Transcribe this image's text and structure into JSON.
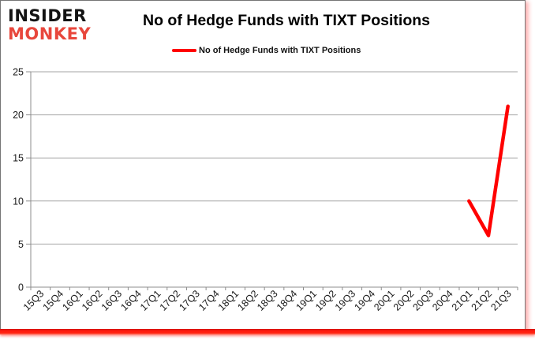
{
  "logo": {
    "line1": "INSIDER",
    "line2": "MONKEY",
    "black": "#141414",
    "red": "#E8473C"
  },
  "header": {
    "title": "No of Hedge Funds with TIXT Positions"
  },
  "legend": {
    "label": "No of Hedge Funds with TIXT Positions",
    "line_color": "#FF0000"
  },
  "chart_data": {
    "type": "line",
    "title": "No of Hedge Funds with TIXT Positions",
    "categories": [
      "15Q3",
      "15Q4",
      "16Q1",
      "16Q2",
      "16Q3",
      "16Q4",
      "17Q1",
      "17Q2",
      "17Q3",
      "17Q4",
      "18Q1",
      "18Q2",
      "18Q3",
      "18Q4",
      "19Q1",
      "19Q2",
      "19Q3",
      "19Q4",
      "20Q1",
      "20Q2",
      "20Q3",
      "20Q4",
      "21Q1",
      "21Q2",
      "21Q3"
    ],
    "series": [
      {
        "name": "No of Hedge Funds with TIXT Positions",
        "color": "#FF0000",
        "values": [
          null,
          null,
          null,
          null,
          null,
          null,
          null,
          null,
          null,
          null,
          null,
          null,
          null,
          null,
          null,
          null,
          null,
          null,
          null,
          null,
          null,
          null,
          10,
          6,
          21
        ]
      }
    ],
    "xlabel": "",
    "ylabel": "",
    "ylim": [
      0,
      25
    ],
    "yticks": [
      0,
      5,
      10,
      15,
      20,
      25
    ],
    "grid": true,
    "gridline_color": "#A6A6A6",
    "axis_color": "#8C8C8C",
    "legend_position": "top"
  }
}
